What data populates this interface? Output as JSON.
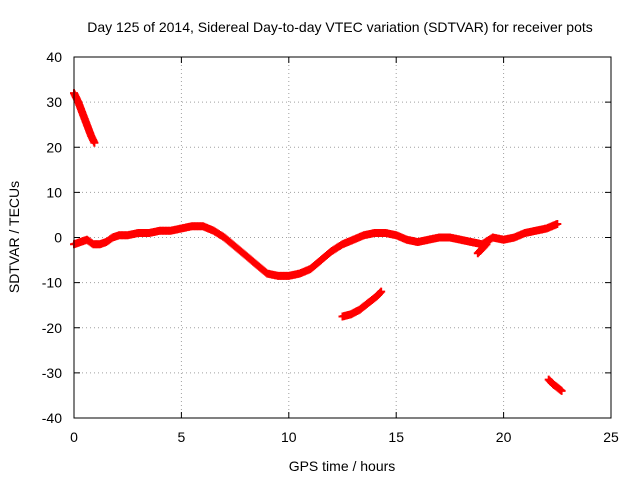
{
  "chart_data": {
    "type": "scatter",
    "title": "Day 125 of 2014, Sidereal Day-to-day VTEC variation (SDTVAR) for receiver pots",
    "xlabel": "GPS time / hours",
    "ylabel": "SDTVAR / TECUs",
    "xlim": [
      0,
      25
    ],
    "ylim": [
      -40,
      40
    ],
    "xticks": [
      0,
      5,
      10,
      15,
      20,
      25
    ],
    "yticks": [
      -40,
      -30,
      -20,
      -10,
      0,
      10,
      20,
      30,
      40
    ],
    "grid": true,
    "marker": "plus",
    "color": "#ff0000",
    "series": [
      {
        "name": "segment-1",
        "x": [
          0.0,
          0.2,
          0.4,
          0.6,
          0.8,
          0.95
        ],
        "y": [
          32,
          30,
          27.5,
          25,
          22.5,
          21
        ]
      },
      {
        "name": "segment-main",
        "x": [
          0.0,
          0.3,
          0.6,
          0.9,
          1.2,
          1.5,
          1.8,
          2.1,
          2.5,
          3.0,
          3.5,
          4.0,
          4.5,
          5.0,
          5.5,
          6.0,
          6.5,
          7.0,
          7.5,
          8.0,
          8.5,
          9.0,
          9.5,
          10.0,
          10.5,
          11.0,
          11.5,
          12.0,
          12.5,
          13.0,
          13.5,
          14.0,
          14.5,
          15.0,
          15.5,
          16.0,
          16.5,
          17.0,
          17.5,
          18.0,
          18.5,
          19.0,
          19.5,
          20.0,
          20.5,
          21.0,
          21.5,
          22.0,
          22.5
        ],
        "y": [
          -1.5,
          -1,
          -0.5,
          -1.5,
          -1.5,
          -1,
          0,
          0.5,
          0.5,
          1,
          1,
          1.5,
          1.5,
          2,
          2.5,
          2.5,
          1.5,
          0,
          -2,
          -4,
          -6,
          -8,
          -8.5,
          -8.5,
          -8,
          -7,
          -5,
          -3,
          -1.5,
          -0.5,
          0.5,
          1,
          1,
          0.5,
          -0.5,
          -1,
          -0.5,
          0,
          0,
          -0.5,
          -1,
          -1.5,
          0,
          -0.5,
          0,
          1,
          1.5,
          2,
          3
        ]
      },
      {
        "name": "segment-dip",
        "x": [
          18.8,
          19.0,
          19.2
        ],
        "y": [
          -3.5,
          -2.5,
          -1.5
        ]
      },
      {
        "name": "segment-2",
        "x": [
          12.5,
          12.9,
          13.3,
          13.7,
          14.1,
          14.3
        ],
        "y": [
          -17.5,
          -17,
          -16,
          -14.5,
          -13,
          -12
        ]
      },
      {
        "name": "segment-3",
        "x": [
          22.1,
          22.3,
          22.5,
          22.7
        ],
        "y": [
          -31.5,
          -32.5,
          -33.2,
          -34
        ]
      }
    ]
  }
}
